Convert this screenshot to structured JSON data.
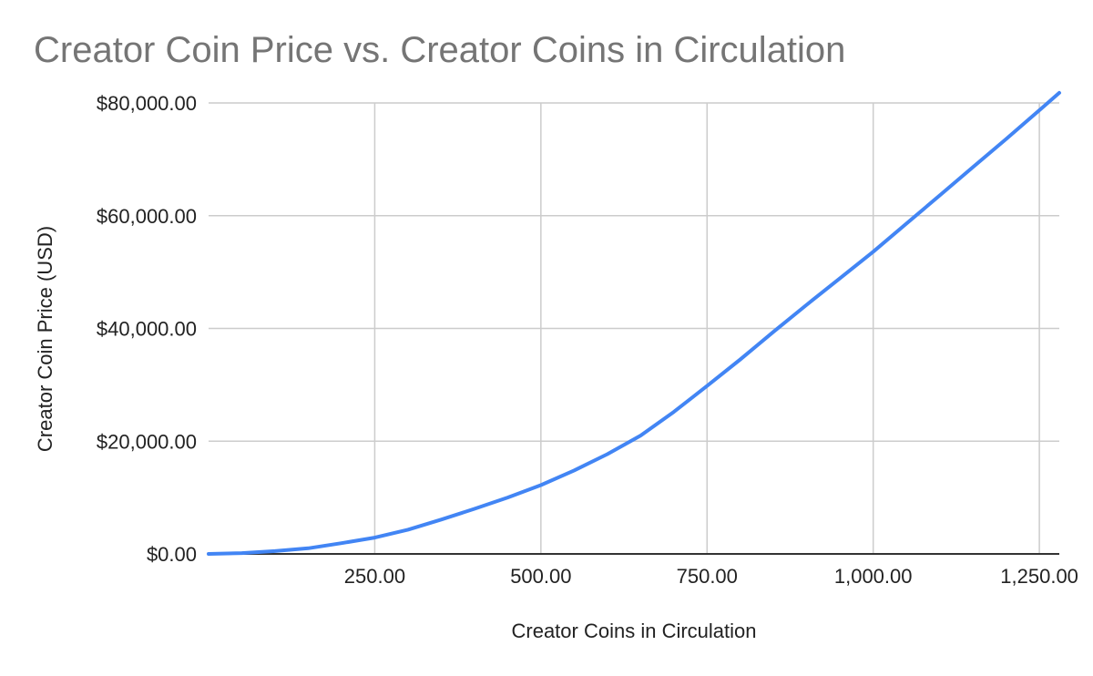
{
  "chart_data": {
    "type": "line",
    "title": "Creator Coin Price vs. Creator Coins in Circulation",
    "xlabel": "Creator Coins in Circulation",
    "ylabel": "Creator Coin Price (USD)",
    "xlim": [
      0,
      1280
    ],
    "ylim": [
      0,
      80000
    ],
    "x_ticks": [
      250,
      500,
      750,
      1000,
      1250
    ],
    "x_tick_labels": [
      "250.00",
      "500.00",
      "750.00",
      "1,000.00",
      "1,250.00"
    ],
    "y_ticks": [
      0,
      20000,
      40000,
      60000,
      80000
    ],
    "y_tick_labels": [
      "$0.00",
      "$20,000.00",
      "$40,000.00",
      "$60,000.00",
      "$80,000.00"
    ],
    "grid": true,
    "legend": "none",
    "series": [
      {
        "color": "#4285f4",
        "x": [
          0,
          50,
          100,
          150,
          200,
          250,
          300,
          350,
          400,
          450,
          500,
          550,
          600,
          650,
          700,
          750,
          800,
          850,
          900,
          950,
          1000,
          1050,
          1100,
          1150,
          1200,
          1250,
          1280
        ],
        "y": [
          0,
          150,
          500,
          1000,
          1900,
          2900,
          4300,
          6100,
          8000,
          10000,
          12200,
          14800,
          17700,
          21000,
          25200,
          29800,
          34500,
          39400,
          44200,
          48900,
          53600,
          58600,
          63600,
          68600,
          73600,
          78700,
          81800
        ]
      }
    ]
  }
}
